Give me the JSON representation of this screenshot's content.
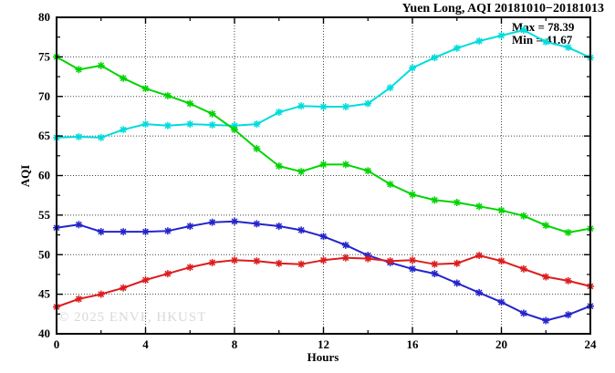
{
  "title": "Yuen Long, AQI 20181010−20181013",
  "annotation": {
    "max_label": "Max = 78.39",
    "min_label": "Min = 41.67"
  },
  "watermark": "© 2025 ENVF, HKUST",
  "colors": {
    "cyan_series": "#00dcdc",
    "green_series": "#00d400",
    "blue_series": "#2424cc",
    "red_series": "#dd1c1c",
    "grid": "#444444",
    "border": "#000000",
    "watermark": "#d8d8d8"
  },
  "chart_data": {
    "type": "line",
    "title": "Yuen Long, AQI 20181010−20181013",
    "xlabel": "Hours",
    "ylabel": "AQI",
    "xlim": [
      0,
      24
    ],
    "ylim": [
      40,
      80
    ],
    "x_major_ticks": [
      0,
      4,
      8,
      12,
      16,
      20,
      24
    ],
    "x_minor_step": 2,
    "y_major_ticks": [
      40,
      45,
      50,
      55,
      60,
      65,
      70,
      75,
      80
    ],
    "y_minor_step": 2.5,
    "grid": true,
    "legend_position": "none",
    "marker": "asterisk",
    "annotations": [
      "Max = 78.39",
      "Min = 41.67"
    ],
    "x": [
      0,
      1,
      2,
      3,
      4,
      5,
      6,
      7,
      8,
      9,
      10,
      11,
      12,
      13,
      14,
      15,
      16,
      17,
      18,
      19,
      20,
      21,
      22,
      23,
      24
    ],
    "series": [
      {
        "name": "series-cyan",
        "color": "#00dcdc",
        "values": [
          64.8,
          64.9,
          64.8,
          65.8,
          66.5,
          66.3,
          66.5,
          66.4,
          66.3,
          66.5,
          68.0,
          68.8,
          68.7,
          68.7,
          69.1,
          71.1,
          73.6,
          74.9,
          76.1,
          77.0,
          77.7,
          78.39,
          76.9,
          76.2,
          74.9
        ]
      },
      {
        "name": "series-green",
        "color": "#00d400",
        "values": [
          75.0,
          73.4,
          73.9,
          72.3,
          71.0,
          70.1,
          69.1,
          67.8,
          65.8,
          63.4,
          61.2,
          60.5,
          61.4,
          61.4,
          60.6,
          58.9,
          57.6,
          56.9,
          56.6,
          56.1,
          55.6,
          54.9,
          53.7,
          52.8,
          53.3
        ]
      },
      {
        "name": "series-blue",
        "color": "#2424cc",
        "values": [
          53.4,
          53.8,
          52.9,
          52.9,
          52.9,
          53.0,
          53.6,
          54.1,
          54.2,
          53.9,
          53.6,
          53.1,
          52.3,
          51.2,
          49.9,
          49.0,
          48.2,
          47.6,
          46.4,
          45.2,
          44.0,
          42.6,
          41.67,
          42.4,
          43.5
        ]
      },
      {
        "name": "series-red",
        "color": "#dd1c1c",
        "values": [
          43.4,
          44.4,
          45.0,
          45.8,
          46.8,
          47.6,
          48.4,
          49.0,
          49.3,
          49.2,
          48.9,
          48.8,
          49.3,
          49.6,
          49.5,
          49.2,
          49.3,
          48.8,
          48.9,
          49.9,
          49.2,
          48.2,
          47.2,
          46.7,
          46.0
        ]
      }
    ]
  }
}
